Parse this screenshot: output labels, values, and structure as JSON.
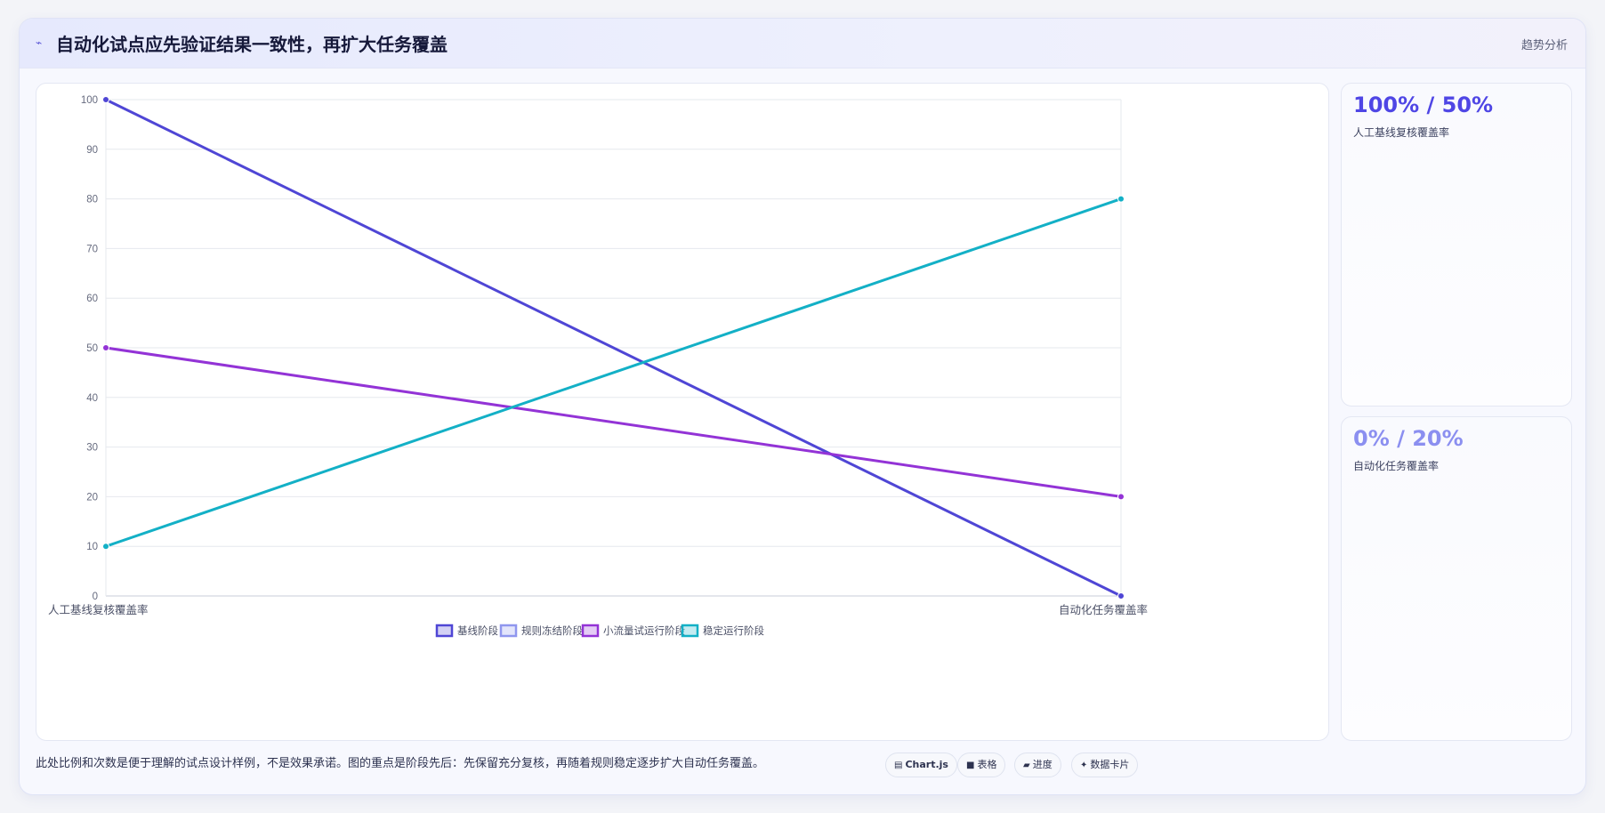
{
  "header": {
    "title": "自动化试点应先验证结果一致性，再扩大任务覆盖",
    "tag": "趋势分析",
    "icon": "trend-icon"
  },
  "kpis": [
    {
      "value": "100% / 50%",
      "label": "人工基线复核覆盖率",
      "color": "#4f46e5"
    },
    {
      "value": "0% / 20%",
      "label": "自动化任务覆盖率",
      "color": "#8b8ff0"
    }
  ],
  "footer": {
    "note": "此处比例和次数是便于理解的试点设计样例，不是效果承诺。图的重点是阶段先后：先保留充分复核，再随着规则稳定逐步扩大自动任务覆盖。"
  },
  "chips": [
    {
      "icon": "▤",
      "icon_name": "chart-icon",
      "label": "Chart.js"
    },
    {
      "icon": "■",
      "icon_name": "table-icon",
      "label": "表格"
    },
    {
      "icon": "▰",
      "icon_name": "progress-icon",
      "label": "进度"
    },
    {
      "icon": "✦",
      "icon_name": "card-icon",
      "label": "数据卡片"
    }
  ],
  "chart_data": {
    "type": "line",
    "categories": [
      "人工基线复核覆盖率",
      "自动化任务覆盖率"
    ],
    "ylim": [
      0,
      100
    ],
    "yticks": [
      0,
      10,
      20,
      30,
      40,
      50,
      60,
      70,
      80,
      90,
      100
    ],
    "grid": true,
    "legend_position": "bottom",
    "series": [
      {
        "name": "基线阶段",
        "values": [
          100,
          0
        ],
        "color": "#4f46d5"
      },
      {
        "name": "规则冻结阶段",
        "values": [
          null,
          null
        ],
        "color": "#8f96ee"
      },
      {
        "name": "小流量试运行阶段",
        "values": [
          50,
          20
        ],
        "color": "#9333d6"
      },
      {
        "name": "稳定运行阶段",
        "values": [
          10,
          80
        ],
        "color": "#13b0c6"
      }
    ]
  }
}
